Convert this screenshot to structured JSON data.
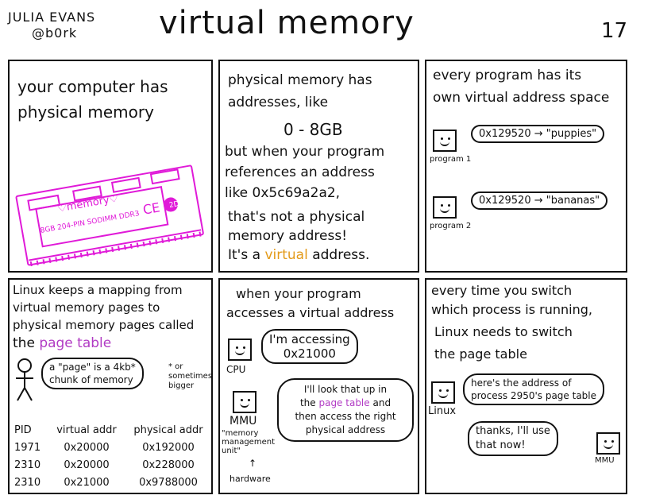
{
  "header": {
    "author_line1": "JULIA EVANS",
    "author_line2": "@b0rk",
    "title": "virtual memory",
    "page_number": "17"
  },
  "panel1": {
    "text_line1": "your computer has",
    "text_line2": "physical memory",
    "ram_label": "♡memory♡",
    "ram_spec": "8GB 204-PIN  SODIMM DDR3",
    "ce_mark": "CE",
    "badge": "2D"
  },
  "panel2": {
    "line1": "physical memory has",
    "line2": "addresses, like",
    "range": "0 - 8GB",
    "line3": "but when your program",
    "line4": "references an address",
    "line5": "like 0x5c69a2a2,",
    "line6": "that's not a physical",
    "line7": "memory address!",
    "line8_prefix": "It's a",
    "line8_highlight": "virtual",
    "line8_suffix": "address."
  },
  "panel3": {
    "line1": "every program has its",
    "line2": "own virtual address space",
    "program1_addr": "0x129520",
    "program1_value": "\"puppies\"",
    "program1_label": "program 1",
    "program2_addr": "0x129520",
    "program2_value": "\"bananas\"",
    "program2_label": "program 2",
    "arrow": "→"
  },
  "panel4": {
    "line1": "Linux keeps a mapping from",
    "line2": "virtual memory pages to",
    "line3": "physical memory pages called",
    "line4_prefix": "the",
    "line4_highlight": "page table",
    "bubble_line1": "a \"page\" is a 4kb*",
    "bubble_line2": "chunk of memory",
    "note": "* or sometimes bigger",
    "table": {
      "headers": [
        "PID",
        "virtual addr",
        "physical addr"
      ],
      "rows": [
        [
          "1971",
          "0x20000",
          "0x192000"
        ],
        [
          "2310",
          "0x20000",
          "0x228000"
        ],
        [
          "2310",
          "0x21000",
          "0x9788000"
        ]
      ]
    }
  },
  "panel5": {
    "line1": "when your program",
    "line2": "accesses a virtual address",
    "cpu_bubble_line1": "I'm accessing",
    "cpu_bubble_line2": "0x21000",
    "cpu_label": "CPU",
    "mmu_cloud_line1": "I'll look that up in",
    "mmu_cloud_line2_prefix": "the",
    "mmu_cloud_line2_highlight": "page table",
    "mmu_cloud_line2_suffix": "and",
    "mmu_cloud_line3": "then access the right",
    "mmu_cloud_line4": "physical address",
    "mmu_label": "MMU",
    "mmu_expansion": "\"memory management unit\"",
    "hardware_label": "hardware"
  },
  "panel6": {
    "line1": "every time you switch",
    "line2": "which process is running,",
    "line3": "Linux needs to switch",
    "line4": "the page table",
    "linux_bubble_line1": "here's the address of",
    "linux_bubble_line2": "process 2950's page table",
    "linux_label": "Linux",
    "mmu_bubble_line1": "thanks, I'll use",
    "mmu_bubble_line2": "that now!",
    "mmu_label": "MMU"
  }
}
